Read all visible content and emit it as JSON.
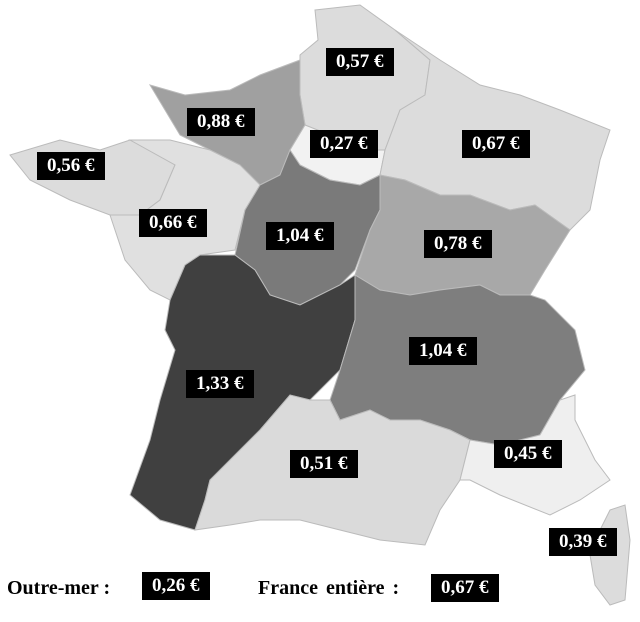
{
  "regions": [
    {
      "id": "hauts-de-france",
      "value": "0,57 €",
      "color": "#dcdcdc"
    },
    {
      "id": "normandie",
      "value": "0,88 €",
      "color": "#a0a0a0"
    },
    {
      "id": "ile-de-france",
      "value": "0,27 €",
      "color": "#f2f2f2"
    },
    {
      "id": "grand-est",
      "value": "0,67 €",
      "color": "#dcdcdc"
    },
    {
      "id": "bretagne",
      "value": "0,56 €",
      "color": "#dcdcdc"
    },
    {
      "id": "pays-de-la-loire",
      "value": "0,66 €",
      "color": "#e0e0e0"
    },
    {
      "id": "centre-val-de-loire",
      "value": "1,04 €",
      "color": "#7a7a7a"
    },
    {
      "id": "bourgogne-franche-comte",
      "value": "0,78 €",
      "color": "#a8a8a8"
    },
    {
      "id": "nouvelle-aquitaine",
      "value": "1,33 €",
      "color": "#404040"
    },
    {
      "id": "auvergne-rhone-alpes",
      "value": "1,04 €",
      "color": "#7e7e7e"
    },
    {
      "id": "occitanie",
      "value": "0,51 €",
      "color": "#dadada"
    },
    {
      "id": "provence-alpes-cote-d-azur",
      "value": "0,45 €",
      "color": "#efefef"
    },
    {
      "id": "corse",
      "value": "0,39 €",
      "color": "#dcdcdc"
    }
  ],
  "legend": {
    "outre_mer_label": "Outre-mer :",
    "outre_mer_value": "0,26 €",
    "france_label": "France entière :",
    "france_value": "0,67 €"
  }
}
